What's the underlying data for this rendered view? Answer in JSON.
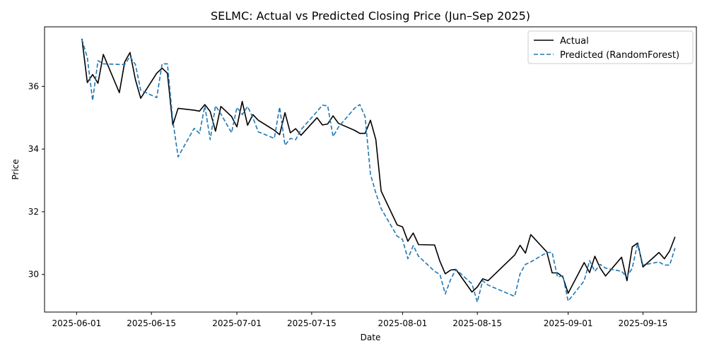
{
  "chart_data": {
    "type": "line",
    "title": "SELMC: Actual vs Predicted Closing Price (Jun–Sep 2025)",
    "xlabel": "Date",
    "ylabel": "Price",
    "xlim": [
      "2025-05-26",
      "2025-09-25"
    ],
    "ylim": [
      28.8,
      37.9
    ],
    "xticks": [
      "2025-06-01",
      "2025-06-15",
      "2025-07-01",
      "2025-07-15",
      "2025-08-01",
      "2025-08-15",
      "2025-09-01",
      "2025-09-15"
    ],
    "yticks": [
      30,
      32,
      34,
      36
    ],
    "legend": "top-right",
    "grid": false,
    "series": [
      {
        "name": "Actual",
        "color": "#000000",
        "style": "solid",
        "points": [
          [
            "2025-06-02",
            37.52
          ],
          [
            "2025-06-03",
            36.12
          ],
          [
            "2025-06-04",
            36.38
          ],
          [
            "2025-06-05",
            36.1
          ],
          [
            "2025-06-06",
            37.02
          ],
          [
            "2025-06-09",
            35.8
          ],
          [
            "2025-06-10",
            36.78
          ],
          [
            "2025-06-11",
            37.08
          ],
          [
            "2025-06-12",
            36.22
          ],
          [
            "2025-06-13",
            35.62
          ],
          [
            "2025-06-16",
            36.42
          ],
          [
            "2025-06-17",
            36.58
          ],
          [
            "2025-06-18",
            36.42
          ],
          [
            "2025-06-19",
            34.77
          ],
          [
            "2025-06-20",
            35.3
          ],
          [
            "2025-06-23",
            35.24
          ],
          [
            "2025-06-24",
            35.21
          ],
          [
            "2025-06-25",
            35.42
          ],
          [
            "2025-06-26",
            35.2
          ],
          [
            "2025-06-27",
            34.57
          ],
          [
            "2025-06-28",
            35.36
          ],
          [
            "2025-06-30",
            35.04
          ],
          [
            "2025-07-01",
            34.71
          ],
          [
            "2025-07-02",
            35.52
          ],
          [
            "2025-07-03",
            34.76
          ],
          [
            "2025-07-04",
            35.1
          ],
          [
            "2025-07-05",
            34.92
          ],
          [
            "2025-07-08",
            34.6
          ],
          [
            "2025-07-09",
            34.46
          ],
          [
            "2025-07-10",
            35.16
          ],
          [
            "2025-07-11",
            34.52
          ],
          [
            "2025-07-12",
            34.65
          ],
          [
            "2025-07-13",
            34.44
          ],
          [
            "2025-07-16",
            35.0
          ],
          [
            "2025-07-17",
            34.77
          ],
          [
            "2025-07-18",
            34.8
          ],
          [
            "2025-07-19",
            35.06
          ],
          [
            "2025-07-20",
            34.82
          ],
          [
            "2025-07-23",
            34.6
          ],
          [
            "2025-07-24",
            34.5
          ],
          [
            "2025-07-25",
            34.5
          ],
          [
            "2025-07-26",
            34.92
          ],
          [
            "2025-07-27",
            34.3
          ],
          [
            "2025-07-28",
            32.66
          ],
          [
            "2025-07-31",
            31.58
          ],
          [
            "2025-08-01",
            31.52
          ],
          [
            "2025-08-02",
            31.06
          ],
          [
            "2025-08-03",
            31.32
          ],
          [
            "2025-08-04",
            30.95
          ],
          [
            "2025-08-07",
            30.94
          ],
          [
            "2025-08-08",
            30.42
          ],
          [
            "2025-08-09",
            30.02
          ],
          [
            "2025-08-10",
            30.14
          ],
          [
            "2025-08-11",
            30.16
          ],
          [
            "2025-08-14",
            29.44
          ],
          [
            "2025-08-15",
            29.6
          ],
          [
            "2025-08-16",
            29.86
          ],
          [
            "2025-08-17",
            29.8
          ],
          [
            "2025-08-22",
            30.62
          ],
          [
            "2025-08-23",
            30.93
          ],
          [
            "2025-08-24",
            30.68
          ],
          [
            "2025-08-25",
            31.27
          ],
          [
            "2025-08-28",
            30.72
          ],
          [
            "2025-08-29",
            30.05
          ],
          [
            "2025-08-30",
            30.05
          ],
          [
            "2025-08-31",
            29.92
          ],
          [
            "2025-09-01",
            29.4
          ],
          [
            "2025-09-04",
            30.38
          ],
          [
            "2025-09-05",
            30.06
          ],
          [
            "2025-09-06",
            30.58
          ],
          [
            "2025-09-07",
            30.2
          ],
          [
            "2025-09-08",
            29.95
          ],
          [
            "2025-09-11",
            30.55
          ],
          [
            "2025-09-12",
            29.8
          ],
          [
            "2025-09-13",
            30.88
          ],
          [
            "2025-09-14",
            31.0
          ],
          [
            "2025-09-15",
            30.24
          ],
          [
            "2025-09-18",
            30.7
          ],
          [
            "2025-09-19",
            30.5
          ],
          [
            "2025-09-20",
            30.75
          ],
          [
            "2025-09-21",
            31.2
          ]
        ]
      },
      {
        "name": "Predicted (RandomForest)",
        "color": "#1f77b4",
        "style": "dashed",
        "points": [
          [
            "2025-06-02",
            37.5
          ],
          [
            "2025-06-03",
            36.92
          ],
          [
            "2025-06-04",
            35.55
          ],
          [
            "2025-06-05",
            36.82
          ],
          [
            "2025-06-06",
            36.72
          ],
          [
            "2025-06-09",
            36.7
          ],
          [
            "2025-06-10",
            36.7
          ],
          [
            "2025-06-11",
            36.95
          ],
          [
            "2025-06-12",
            36.7
          ],
          [
            "2025-06-13",
            35.88
          ],
          [
            "2025-06-16",
            35.64
          ],
          [
            "2025-06-17",
            36.72
          ],
          [
            "2025-06-18",
            36.72
          ],
          [
            "2025-06-19",
            34.92
          ],
          [
            "2025-06-20",
            33.75
          ],
          [
            "2025-06-23",
            34.66
          ],
          [
            "2025-06-24",
            34.5
          ],
          [
            "2025-06-25",
            35.38
          ],
          [
            "2025-06-26",
            34.3
          ],
          [
            "2025-06-27",
            35.38
          ],
          [
            "2025-06-28",
            35.12
          ],
          [
            "2025-06-30",
            34.52
          ],
          [
            "2025-07-01",
            35.33
          ],
          [
            "2025-07-02",
            35.1
          ],
          [
            "2025-07-03",
            35.36
          ],
          [
            "2025-07-04",
            35.0
          ],
          [
            "2025-07-05",
            34.55
          ],
          [
            "2025-07-08",
            34.34
          ],
          [
            "2025-07-09",
            35.34
          ],
          [
            "2025-07-10",
            34.12
          ],
          [
            "2025-07-11",
            34.34
          ],
          [
            "2025-07-12",
            34.3
          ],
          [
            "2025-07-13",
            34.62
          ],
          [
            "2025-07-16",
            35.2
          ],
          [
            "2025-07-17",
            35.4
          ],
          [
            "2025-07-18",
            35.38
          ],
          [
            "2025-07-19",
            34.4
          ],
          [
            "2025-07-20",
            34.7
          ],
          [
            "2025-07-23",
            35.3
          ],
          [
            "2025-07-24",
            35.42
          ],
          [
            "2025-07-25",
            35.04
          ],
          [
            "2025-07-26",
            33.2
          ],
          [
            "2025-07-27",
            32.6
          ],
          [
            "2025-07-28",
            32.1
          ],
          [
            "2025-07-31",
            31.22
          ],
          [
            "2025-08-01",
            31.12
          ],
          [
            "2025-08-02",
            30.5
          ],
          [
            "2025-08-03",
            30.92
          ],
          [
            "2025-08-04",
            30.58
          ],
          [
            "2025-08-07",
            30.1
          ],
          [
            "2025-08-08",
            30.0
          ],
          [
            "2025-08-09",
            29.38
          ],
          [
            "2025-08-10",
            29.84
          ],
          [
            "2025-08-11",
            30.16
          ],
          [
            "2025-08-14",
            29.7
          ],
          [
            "2025-08-15",
            29.12
          ],
          [
            "2025-08-16",
            29.8
          ],
          [
            "2025-08-17",
            29.66
          ],
          [
            "2025-08-22",
            29.3
          ],
          [
            "2025-08-23",
            30.02
          ],
          [
            "2025-08-24",
            30.32
          ],
          [
            "2025-08-25",
            30.4
          ],
          [
            "2025-08-28",
            30.7
          ],
          [
            "2025-08-29",
            30.7
          ],
          [
            "2025-08-30",
            29.92
          ],
          [
            "2025-08-31",
            29.96
          ],
          [
            "2025-09-01",
            29.15
          ],
          [
            "2025-09-04",
            29.8
          ],
          [
            "2025-09-05",
            30.44
          ],
          [
            "2025-09-06",
            30.1
          ],
          [
            "2025-09-07",
            30.32
          ],
          [
            "2025-09-08",
            30.2
          ],
          [
            "2025-09-11",
            30.1
          ],
          [
            "2025-09-12",
            29.92
          ],
          [
            "2025-09-13",
            30.2
          ],
          [
            "2025-09-14",
            31.0
          ],
          [
            "2025-09-15",
            30.3
          ],
          [
            "2025-09-18",
            30.4
          ],
          [
            "2025-09-19",
            30.3
          ],
          [
            "2025-09-20",
            30.3
          ],
          [
            "2025-09-21",
            30.84
          ]
        ]
      }
    ]
  }
}
